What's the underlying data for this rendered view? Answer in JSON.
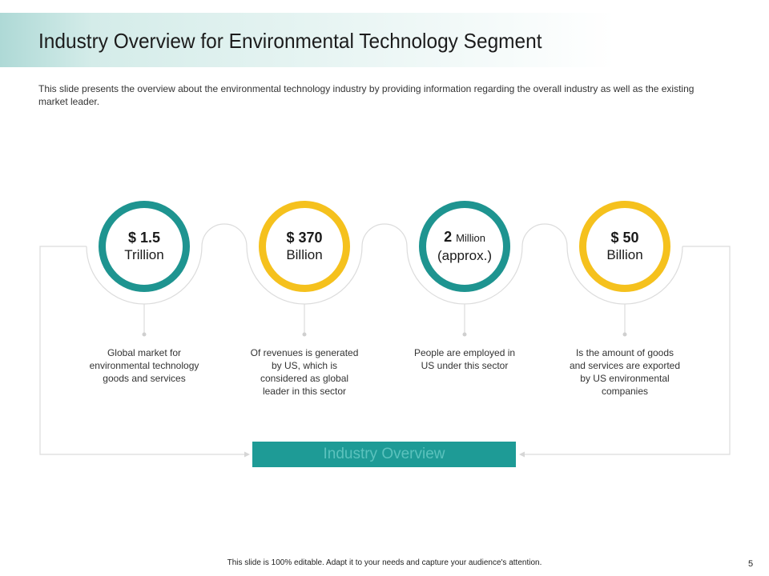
{
  "slide": {
    "title": "Industry Overview for Environmental Technology Segment",
    "description": "This slide presents the overview about the environmental technology industry by providing information regarding the overall industry as well as the existing market leader.",
    "stats": [
      {
        "value_main": "$ 1.5",
        "value_small": "",
        "value_sub": "Trillion",
        "color": "#1e9490",
        "caption": "Global market for environmental technology goods and services"
      },
      {
        "value_main": "$ 370",
        "value_small": "",
        "value_sub": "Billion",
        "color": "#f5c11d",
        "caption": "Of revenues is generated by US, which is considered as global leader in this sector"
      },
      {
        "value_main": "2",
        "value_small": "Million",
        "value_sub": "(approx.)",
        "color": "#1e9490",
        "caption": "People are employed in US under this sector"
      },
      {
        "value_main": "$ 50",
        "value_small": "",
        "value_sub": "Billion",
        "color": "#f5c11d",
        "caption": "Is the amount of goods and services are exported by US environmental companies"
      }
    ],
    "button_label": "Industry Overview",
    "footer": "This slide is 100% editable. Adapt it to your needs and capture your audience's attention.",
    "page_number": "5"
  }
}
